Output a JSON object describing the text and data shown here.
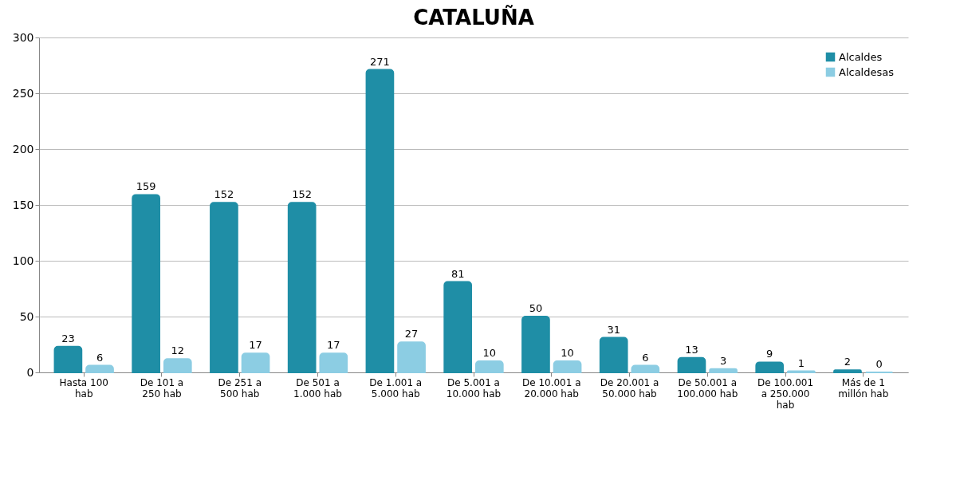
{
  "chart_data": {
    "type": "bar",
    "title": "CATALUÑA",
    "categories": [
      "Hasta 100 hab",
      "De 101 a 250 hab",
      "De 251 a 500 hab",
      "De 501 a 1.000 hab",
      "De 1.001 a 5.000 hab",
      "De 5.001 a 10.000 hab",
      "De 10.001 a 20.000 hab",
      "De 20.001 a 50.000 hab",
      "De 50.001 a 100.000 hab",
      "De 100.001 a 250.000 hab",
      "Más de 1 millón hab"
    ],
    "series": [
      {
        "name": "Alcaldes",
        "color": "#1f8ea6",
        "values": [
          23,
          159,
          152,
          152,
          271,
          81,
          50,
          31,
          13,
          9,
          2
        ]
      },
      {
        "name": "Alcaldesas",
        "color": "#8ccde3",
        "values": [
          6,
          12,
          17,
          17,
          27,
          10,
          10,
          6,
          3,
          1,
          0
        ]
      }
    ],
    "ylim": [
      0,
      300
    ],
    "yticks": [
      0,
      50,
      100,
      150,
      200,
      250,
      300
    ],
    "grid": "y",
    "legend": "top right",
    "data_labels": true
  }
}
